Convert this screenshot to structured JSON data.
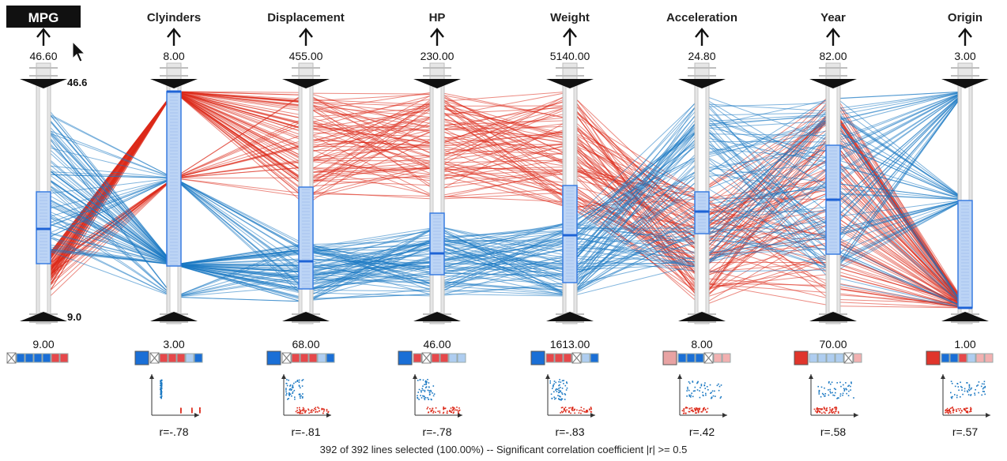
{
  "chart_data": {
    "type": "parallel-coordinates",
    "selected_axis": "MPG",
    "axes": [
      {
        "name": "MPG",
        "max": "46.60",
        "min": "9.00",
        "max_label": "46.6",
        "min_label": "9.0",
        "correlation": ""
      },
      {
        "name": "Clyinders",
        "max": "8.00",
        "min": "3.00",
        "correlation": "r=-.78"
      },
      {
        "name": "Displacement",
        "max": "455.00",
        "min": "68.00",
        "correlation": "r=-.81"
      },
      {
        "name": "HP",
        "max": "230.00",
        "min": "46.00",
        "correlation": "r=-.78"
      },
      {
        "name": "Weight",
        "max": "5140.00",
        "min": "1613.00",
        "correlation": "r=-.83"
      },
      {
        "name": "Acceleration",
        "max": "24.80",
        "min": "8.00",
        "correlation": "r=.42"
      },
      {
        "name": "Year",
        "max": "82.00",
        "min": "70.00",
        "correlation": "r=.58"
      },
      {
        "name": "Origin",
        "max": "3.00",
        "min": "1.00",
        "correlation": "r=.57"
      }
    ],
    "series": [
      {
        "name": "",
        "color": "#dc2a1a",
        "group": "low-mpg"
      },
      {
        "name": "",
        "color": "#1a78c2",
        "group": "high-mpg"
      }
    ]
  },
  "status": "392 of 392 lines selected (100.00%)  --  Significant correlation coefficient  |r| >= 0.5",
  "colors": {
    "red": "#dc2a1a",
    "blue": "#1a78c2",
    "box_fill": "#bcd4f5",
    "box_stroke": "#3a7de0",
    "axis_gray": "#cfcfcf"
  },
  "icons": {
    "cursor": "mouse-pointer-icon",
    "up_arrow": "up-arrow-icon",
    "filter_top": "filter-top-triangle-icon",
    "filter_bottom": "filter-bottom-triangle-icon"
  }
}
